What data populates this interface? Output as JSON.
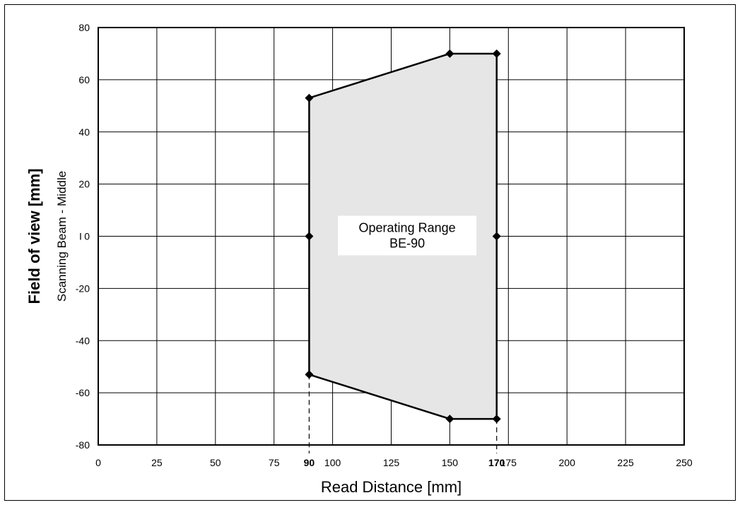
{
  "chart_data": {
    "type": "area",
    "xlabel": "Read Distance [mm]",
    "ylabel": "Field of view [mm]",
    "ylabel_sub": "Scanning Beam - Middle",
    "xlim": [
      0,
      250
    ],
    "ylim": [
      -80,
      80
    ],
    "x_ticks": [
      0,
      25,
      50,
      75,
      100,
      125,
      150,
      175,
      200,
      225,
      250
    ],
    "x_ticks_highlighted": [
      90,
      170
    ],
    "y_ticks": [
      80,
      60,
      40,
      20,
      0,
      -20,
      -40,
      -60,
      -80
    ],
    "y_zero_label": "I",
    "grid": true,
    "region": {
      "label_line1": "Operating Range",
      "label_line2": "BE-90",
      "fill_color": "#e6e6e6",
      "outline_color": "#000000",
      "polygon": [
        [
          90,
          53
        ],
        [
          150,
          70
        ],
        [
          170,
          70
        ],
        [
          170,
          -70
        ],
        [
          150,
          -70
        ],
        [
          90,
          -53
        ]
      ],
      "markers": [
        [
          90,
          53
        ],
        [
          150,
          70
        ],
        [
          170,
          70
        ],
        [
          90,
          0
        ],
        [
          170,
          0
        ],
        [
          90,
          -53
        ],
        [
          150,
          -70
        ],
        [
          170,
          -70
        ]
      ]
    },
    "reference_lines_x": [
      90,
      170
    ]
  }
}
